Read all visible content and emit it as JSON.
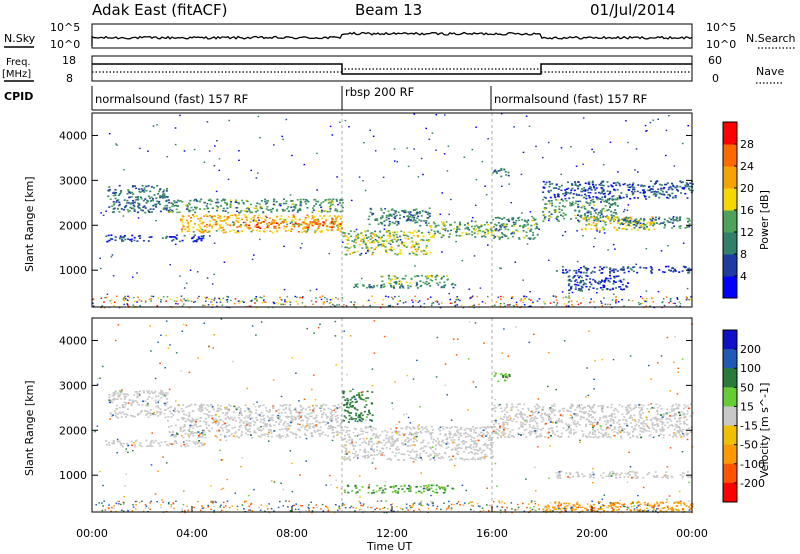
{
  "header": {
    "station": "Adak East (fitACF)",
    "beam": "Beam 13",
    "date": "01/Jul/2014"
  },
  "strip_labels": {
    "nsky": "N.Sky",
    "nsearch": "N.Search",
    "freq": "Freq.",
    "freq_unit": "[MHz]",
    "nave": "Nave",
    "cpid": "CPID"
  },
  "strip_ticks": {
    "noise_left": [
      "10^5",
      "10^0"
    ],
    "noise_right": [
      "10^5",
      "10^0"
    ],
    "freq_left": [
      "18",
      "8"
    ],
    "nave_right": [
      "60",
      "0"
    ]
  },
  "cpid_segments": [
    {
      "label": "normalsound (fast) 157 RF",
      "start": 0,
      "end": 10
    },
    {
      "label": "rbsp 200 RF",
      "start": 10,
      "end": 16
    },
    {
      "label": "normalsound (fast) 157 RF",
      "start": 16,
      "end": 24
    }
  ],
  "colors": {
    "power_scale": [
      "#0000ff",
      "#1e3ca0",
      "#2f7f6a",
      "#4ea25a",
      "#f5d800",
      "#f5a300",
      "#ff6a00",
      "#ff0000"
    ],
    "velocity_scale": [
      "#1010c8",
      "#205ab4",
      "#2a7a3a",
      "#66cc33",
      "#c8c8c8",
      "#f0c000",
      "#ff9900",
      "#ff5500",
      "#ff0000"
    ],
    "ground_scatter": "#b8b8b0"
  },
  "chart_data": [
    {
      "type": "heatmap",
      "name": "power",
      "ylabel": "Slant Range [km]",
      "colorbar_label": "Power [dB]",
      "colorbar_ticks": [
        "4",
        "8",
        "12",
        "16",
        "20",
        "24",
        "28"
      ],
      "x_range": [
        0,
        24
      ],
      "y_range": [
        180,
        4500
      ],
      "y_ticks": [
        1000,
        2000,
        3000,
        4000
      ],
      "bands": [
        {
          "t0": 0.6,
          "t1": 3.0,
          "r0": 2300,
          "r1": 2900,
          "level": 9
        },
        {
          "t0": 0.5,
          "t1": 4.5,
          "r0": 1650,
          "r1": 1800,
          "level": 6
        },
        {
          "t0": 3.0,
          "t1": 10.0,
          "r0": 2300,
          "r1": 2600,
          "level": 12
        },
        {
          "t0": 3.5,
          "t1": 10.0,
          "r0": 1850,
          "r1": 2250,
          "level": 20
        },
        {
          "t0": 6.0,
          "t1": 10.0,
          "r0": 1950,
          "r1": 2100,
          "level": 26
        },
        {
          "t0": 10.0,
          "t1": 13.5,
          "r0": 1350,
          "r1": 1900,
          "level": 16
        },
        {
          "t0": 11.0,
          "t1": 13.5,
          "r0": 2000,
          "r1": 2400,
          "level": 10
        },
        {
          "t0": 13.5,
          "t1": 16.0,
          "r0": 1750,
          "r1": 2100,
          "level": 14
        },
        {
          "t0": 10.0,
          "t1": 14.5,
          "r0": 620,
          "r1": 720,
          "level": 10
        },
        {
          "t0": 11.5,
          "t1": 14.2,
          "r0": 720,
          "r1": 900,
          "level": 14
        },
        {
          "t0": 16.0,
          "t1": 17.8,
          "r0": 1700,
          "r1": 2200,
          "level": 12
        },
        {
          "t0": 16.0,
          "t1": 16.7,
          "r0": 3100,
          "r1": 3300,
          "level": 9
        },
        {
          "t0": 18.0,
          "t1": 21.0,
          "r0": 2100,
          "r1": 2600,
          "level": 12
        },
        {
          "t0": 19.5,
          "t1": 22.5,
          "r0": 1900,
          "r1": 2200,
          "level": 18
        },
        {
          "t0": 18.0,
          "t1": 24.0,
          "r0": 2600,
          "r1": 3000,
          "level": 7
        },
        {
          "t0": 21.0,
          "t1": 24.0,
          "r0": 1950,
          "r1": 2200,
          "level": 10
        },
        {
          "t0": 18.5,
          "t1": 24.0,
          "r0": 950,
          "r1": 1100,
          "level": 6
        },
        {
          "t0": 19.0,
          "t1": 21.5,
          "r0": 550,
          "r1": 900,
          "level": 6
        }
      ]
    },
    {
      "type": "heatmap",
      "name": "velocity",
      "ylabel": "Slant Range [km]",
      "xlabel": "Time UT",
      "colorbar_label": "Velocity [m s^-1]",
      "colorbar_ticks": [
        "200",
        "100",
        "50",
        "15",
        "-15",
        "-50",
        "-100",
        "-200"
      ],
      "x_range": [
        0,
        24
      ],
      "x_ticks": [
        "00:00",
        "04:00",
        "08:00",
        "12:00",
        "16:00",
        "20:00",
        "00:00"
      ],
      "y_range": [
        180,
        4500
      ],
      "y_ticks": [
        1000,
        2000,
        3000,
        4000
      ],
      "bands": [
        {
          "t0": 0.6,
          "t1": 3.0,
          "r0": 2300,
          "r1": 2900,
          "vel": 0
        },
        {
          "t0": 0.5,
          "t1": 4.5,
          "r0": 1650,
          "r1": 1800,
          "vel": 0
        },
        {
          "t0": 3.0,
          "t1": 10.0,
          "r0": 1850,
          "r1": 2600,
          "vel": 0
        },
        {
          "t0": 10.0,
          "t1": 11.2,
          "r0": 2200,
          "r1": 2900,
          "vel": 40
        },
        {
          "t0": 10.0,
          "t1": 16.0,
          "r0": 1350,
          "r1": 2100,
          "vel": 0
        },
        {
          "t0": 10.0,
          "t1": 14.5,
          "r0": 620,
          "r1": 800,
          "vel": 30
        },
        {
          "t0": 16.0,
          "t1": 16.7,
          "r0": 3100,
          "r1": 3300,
          "vel": 30
        },
        {
          "t0": 16.0,
          "t1": 24.0,
          "r0": 1850,
          "r1": 2600,
          "vel": 0
        },
        {
          "t0": 18.5,
          "t1": 24.0,
          "r0": 950,
          "r1": 1100,
          "vel": 0
        },
        {
          "t0": 18.0,
          "t1": 24.0,
          "r0": 200,
          "r1": 420,
          "vel": -40
        }
      ]
    }
  ]
}
